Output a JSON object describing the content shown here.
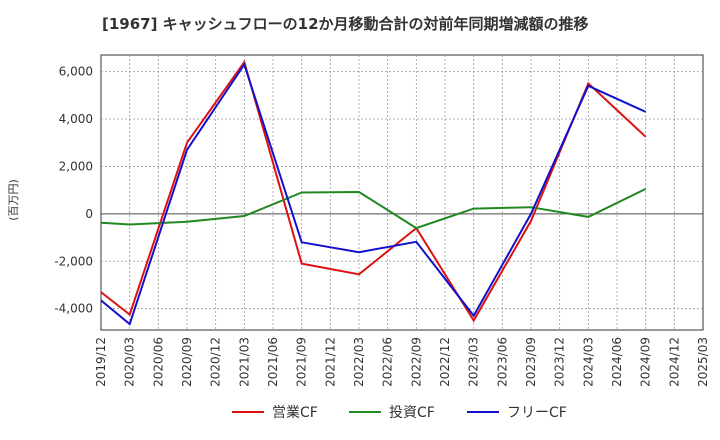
{
  "chart_data": {
    "type": "line",
    "title": "[1967]  キャッシュフローの12か月移動合計の対前年同期増減額の推移",
    "ylabel": "(百万円)",
    "xlabel": "",
    "categories": [
      "2019/12",
      "2020/03",
      "2020/06",
      "2020/09",
      "2020/12",
      "2021/03",
      "2021/06",
      "2021/09",
      "2021/12",
      "2022/03",
      "2022/06",
      "2022/09",
      "2022/12",
      "2023/03",
      "2023/06",
      "2023/09",
      "2023/12",
      "2024/03",
      "2024/06",
      "2024/09",
      "2024/12",
      "2025/03"
    ],
    "ylim": [
      -4900,
      6700
    ],
    "yticks": [
      -4000,
      -2000,
      0,
      2000,
      4000,
      6000
    ],
    "ytick_labels": [
      "-4,000",
      "-2,000",
      "0",
      "2,000",
      "4,000",
      "6,000"
    ],
    "grid": true,
    "legend_position": "bottom",
    "series": [
      {
        "name": "営業CF",
        "color": "#dd1111",
        "values": [
          -3300,
          -4250,
          null,
          3000,
          null,
          6400,
          null,
          -2100,
          null,
          -2550,
          null,
          -600,
          null,
          -4500,
          null,
          -300,
          null,
          5500,
          null,
          3250,
          null,
          null
        ]
      },
      {
        "name": "投資CF",
        "color": "#228822",
        "values": [
          -380,
          -450,
          null,
          -330,
          null,
          -90,
          null,
          900,
          null,
          920,
          null,
          -600,
          null,
          220,
          null,
          280,
          null,
          -130,
          null,
          1050,
          null,
          null
        ]
      },
      {
        "name": "フリーCF",
        "color": "#1111cc",
        "values": [
          -3650,
          -4650,
          null,
          2700,
          null,
          6300,
          null,
          -1200,
          null,
          -1620,
          null,
          -1180,
          null,
          -4300,
          null,
          0,
          null,
          5400,
          null,
          4300,
          null,
          null
        ]
      }
    ]
  }
}
